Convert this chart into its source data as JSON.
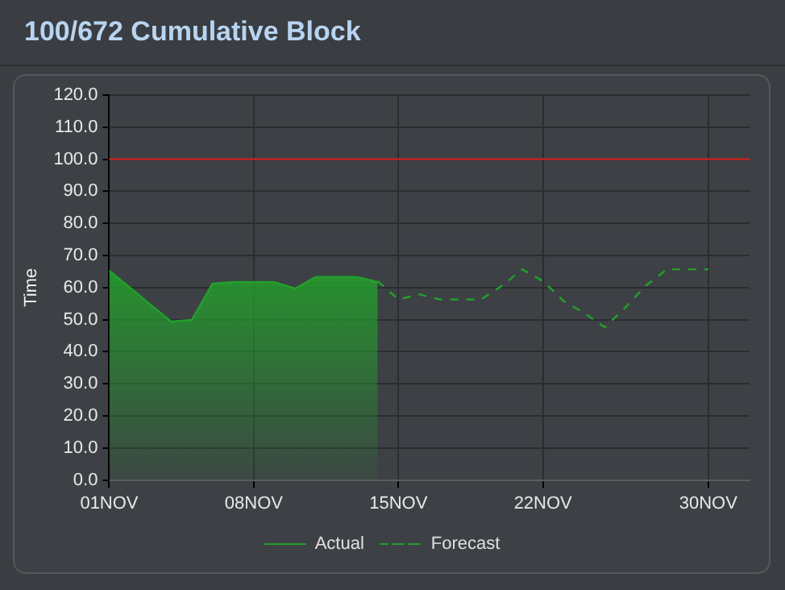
{
  "chart_data": {
    "type": "line",
    "title": "100/672 Cumulative Block",
    "ylabel": "Time",
    "xlim": [
      "--11-01",
      "--12-02"
    ],
    "xticks": [
      {
        "value": "--11-01",
        "label": "01NOV"
      },
      {
        "value": "--11-08",
        "label": "08NOV"
      },
      {
        "value": "--11-15",
        "label": "15NOV"
      },
      {
        "value": "--11-22",
        "label": "22NOV"
      },
      {
        "value": "--11-30",
        "label": "30NOV"
      }
    ],
    "ylim": [
      0,
      120
    ],
    "yticks": [
      {
        "value": 0,
        "label": "0.0"
      },
      {
        "value": 10,
        "label": "10.0"
      },
      {
        "value": 20,
        "label": "20.0"
      },
      {
        "value": 30,
        "label": "30.0"
      },
      {
        "value": 40,
        "label": "40.0"
      },
      {
        "value": 50,
        "label": "50.0"
      },
      {
        "value": 60,
        "label": "60.0"
      },
      {
        "value": 70,
        "label": "70.0"
      },
      {
        "value": 80,
        "label": "80.0"
      },
      {
        "value": 90,
        "label": "90.0"
      },
      {
        "value": 100,
        "label": "100.0"
      },
      {
        "value": 110,
        "label": "110.0"
      },
      {
        "value": 120,
        "label": "120.0"
      }
    ],
    "series": [
      {
        "name": "Actual",
        "type": "area",
        "color": "#22a12a",
        "line_style": "solid",
        "x": [
          "--11-01",
          "--11-02",
          "--11-03",
          "--11-04",
          "--11-05",
          "--11-06",
          "--11-07",
          "--11-08",
          "--11-09",
          "--11-10",
          "--11-11",
          "--11-12",
          "--11-13",
          "--11-14"
        ],
        "values": [
          65.3,
          60,
          54.7,
          49.4,
          49.9,
          61.2,
          61.7,
          61.7,
          61.7,
          59.7,
          63.3,
          63.3,
          63.3,
          61.7
        ]
      },
      {
        "name": "Forecast",
        "type": "line",
        "color": "#22a12a",
        "line_style": "dashed",
        "x": [
          "--11-14",
          "--11-15",
          "--11-16",
          "--11-17",
          "--11-18",
          "--11-19",
          "--11-20",
          "--11-21",
          "--11-22",
          "--11-23",
          "--11-24",
          "--11-25",
          "--11-26",
          "--11-27",
          "--11-28",
          "--11-29",
          "--11-30"
        ],
        "values": [
          62,
          56.3,
          57.9,
          56.3,
          56.3,
          56.3,
          60.5,
          65.7,
          62,
          55.8,
          52.1,
          47.6,
          53.9,
          60.7,
          65.7,
          65.7,
          65.7
        ]
      }
    ],
    "ref_lines": [
      {
        "axis": "y",
        "value": 100,
        "color": "#e0201c"
      }
    ],
    "grid": true,
    "marker": "none",
    "legend": "bottom"
  }
}
